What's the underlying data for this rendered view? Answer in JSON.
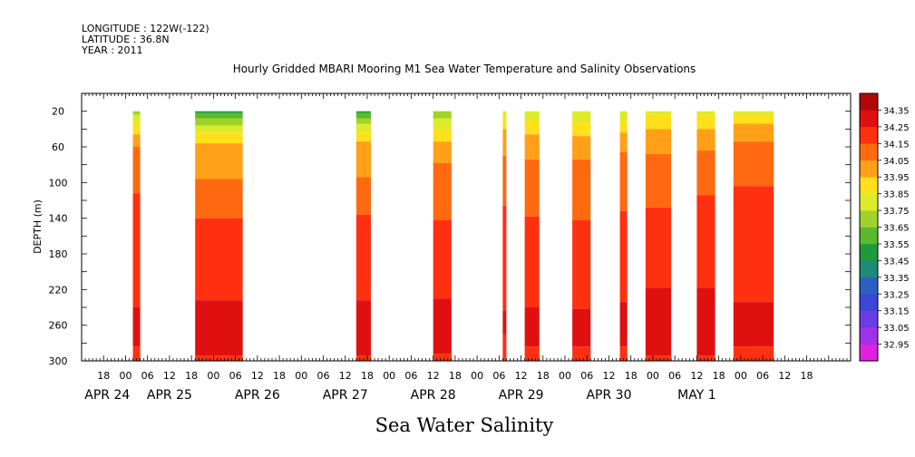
{
  "header": {
    "lines": [
      "LONGITUDE : 122W(-122)",
      "LATITUDE : 36.8N",
      "YEAR : 2011"
    ]
  },
  "chart_data": {
    "type": "heatmap",
    "title": "Hourly Gridded MBARI Mooring M1 Sea Water Temperature and Salinity Observations",
    "caption": "Sea Water Salinity",
    "ylabel": "DEPTH (m)",
    "ylim": [
      0,
      300
    ],
    "y_inverted": true,
    "y_ticks": [
      20,
      60,
      100,
      140,
      180,
      220,
      260,
      300
    ],
    "x_hour_range": [
      -12,
      198
    ],
    "x_hour_ticks": [
      {
        "h": -6,
        "label": "18"
      },
      {
        "h": 0,
        "label": "00"
      },
      {
        "h": 6,
        "label": "06"
      },
      {
        "h": 12,
        "label": "12"
      },
      {
        "h": 18,
        "label": "18"
      },
      {
        "h": 24,
        "label": "00"
      },
      {
        "h": 30,
        "label": "06"
      },
      {
        "h": 36,
        "label": "12"
      },
      {
        "h": 42,
        "label": "18"
      },
      {
        "h": 48,
        "label": "00"
      },
      {
        "h": 54,
        "label": "06"
      },
      {
        "h": 60,
        "label": "12"
      },
      {
        "h": 66,
        "label": "18"
      },
      {
        "h": 72,
        "label": "00"
      },
      {
        "h": 78,
        "label": "06"
      },
      {
        "h": 84,
        "label": "12"
      },
      {
        "h": 90,
        "label": "18"
      },
      {
        "h": 96,
        "label": "00"
      },
      {
        "h": 102,
        "label": "06"
      },
      {
        "h": 108,
        "label": "12"
      },
      {
        "h": 114,
        "label": "18"
      },
      {
        "h": 120,
        "label": "00"
      },
      {
        "h": 126,
        "label": "06"
      },
      {
        "h": 132,
        "label": "12"
      },
      {
        "h": 138,
        "label": "18"
      },
      {
        "h": 144,
        "label": "00"
      },
      {
        "h": 150,
        "label": "06"
      },
      {
        "h": 156,
        "label": "12"
      },
      {
        "h": 162,
        "label": "18"
      },
      {
        "h": 168,
        "label": "00"
      },
      {
        "h": 174,
        "label": "06"
      },
      {
        "h": 180,
        "label": "12"
      },
      {
        "h": 186,
        "label": "18"
      }
    ],
    "x_day_labels": [
      {
        "h": -5,
        "label": "APR 24"
      },
      {
        "h": 12,
        "label": "APR 25"
      },
      {
        "h": 36,
        "label": "APR 26"
      },
      {
        "h": 60,
        "label": "APR 27"
      },
      {
        "h": 84,
        "label": "APR 28"
      },
      {
        "h": 108,
        "label": "APR 29"
      },
      {
        "h": 132,
        "label": "APR 30"
      },
      {
        "h": 156,
        "label": "MAY 1"
      }
    ],
    "colorbar": {
      "levels": [
        32.95,
        33.05,
        33.15,
        33.25,
        33.35,
        33.45,
        33.55,
        33.65,
        33.75,
        33.85,
        33.95,
        34.05,
        34.15,
        34.25,
        34.35
      ],
      "colors": [
        "#e020e0",
        "#a030e8",
        "#6a3ce8",
        "#3c46d8",
        "#2a60c0",
        "#1e8a7a",
        "#1f9a3a",
        "#5cb82c",
        "#a0d22a",
        "#dcec2a",
        "#ffe01a",
        "#ffa018",
        "#ff6a10",
        "#ff3010",
        "#e01010",
        "#b00808"
      ]
    },
    "segments": [
      {
        "start": 2,
        "end": 4,
        "profile": [
          [
            20,
            33.72
          ],
          [
            40,
            33.9
          ],
          [
            60,
            34.05
          ],
          [
            100,
            34.13
          ],
          [
            140,
            34.2
          ],
          [
            220,
            34.22
          ],
          [
            260,
            34.28
          ],
          [
            300,
            34.23
          ]
        ]
      },
      {
        "start": 19,
        "end": 32,
        "profile": [
          [
            20,
            33.5
          ],
          [
            30,
            33.68
          ],
          [
            45,
            33.85
          ],
          [
            60,
            33.98
          ],
          [
            80,
            34.03
          ],
          [
            120,
            34.08
          ],
          [
            150,
            34.18
          ],
          [
            200,
            34.21
          ],
          [
            240,
            34.26
          ],
          [
            260,
            34.3
          ],
          [
            300,
            34.24
          ]
        ]
      },
      {
        "start": 63,
        "end": 67,
        "profile": [
          [
            20,
            33.5
          ],
          [
            30,
            33.7
          ],
          [
            45,
            33.87
          ],
          [
            60,
            34.0
          ],
          [
            100,
            34.06
          ],
          [
            140,
            34.16
          ],
          [
            200,
            34.21
          ],
          [
            240,
            34.26
          ],
          [
            260,
            34.3
          ],
          [
            300,
            34.24
          ]
        ]
      },
      {
        "start": 84,
        "end": 89,
        "profile": [
          [
            20,
            33.65
          ],
          [
            35,
            33.82
          ],
          [
            55,
            33.96
          ],
          [
            80,
            34.06
          ],
          [
            120,
            34.12
          ],
          [
            180,
            34.2
          ],
          [
            240,
            34.26
          ],
          [
            260,
            34.29
          ],
          [
            300,
            34.24
          ]
        ]
      },
      {
        "start": 103,
        "end": 104,
        "profile": [
          [
            20,
            33.8
          ],
          [
            40,
            33.95
          ],
          [
            80,
            34.08
          ],
          [
            160,
            34.2
          ],
          [
            260,
            34.26
          ],
          [
            300,
            34.22
          ]
        ]
      },
      {
        "start": 109,
        "end": 113,
        "profile": [
          [
            20,
            33.78
          ],
          [
            40,
            33.92
          ],
          [
            60,
            34.02
          ],
          [
            100,
            34.1
          ],
          [
            160,
            34.18
          ],
          [
            220,
            34.22
          ],
          [
            260,
            34.28
          ],
          [
            300,
            34.23
          ]
        ]
      },
      {
        "start": 122,
        "end": 127,
        "profile": [
          [
            20,
            33.76
          ],
          [
            40,
            33.9
          ],
          [
            60,
            34.02
          ],
          [
            100,
            34.1
          ],
          [
            160,
            34.17
          ],
          [
            220,
            34.21
          ],
          [
            260,
            34.28
          ],
          [
            300,
            34.23
          ]
        ]
      },
      {
        "start": 135,
        "end": 137,
        "profile": [
          [
            20,
            33.78
          ],
          [
            40,
            33.92
          ],
          [
            60,
            34.04
          ],
          [
            120,
            34.14
          ],
          [
            200,
            34.21
          ],
          [
            260,
            34.28
          ],
          [
            300,
            34.23
          ]
        ]
      },
      {
        "start": 142,
        "end": 149,
        "profile": [
          [
            20,
            33.82
          ],
          [
            40,
            33.95
          ],
          [
            70,
            34.06
          ],
          [
            120,
            34.14
          ],
          [
            180,
            34.22
          ],
          [
            230,
            34.26
          ],
          [
            260,
            34.3
          ],
          [
            300,
            34.24
          ]
        ]
      },
      {
        "start": 156,
        "end": 161,
        "profile": [
          [
            20,
            33.82
          ],
          [
            40,
            33.95
          ],
          [
            70,
            34.08
          ],
          [
            120,
            34.16
          ],
          [
            180,
            34.22
          ],
          [
            230,
            34.26
          ],
          [
            260,
            34.3
          ],
          [
            300,
            34.24
          ]
        ]
      },
      {
        "start": 166,
        "end": 177,
        "profile": [
          [
            20,
            33.82
          ],
          [
            35,
            33.95
          ],
          [
            55,
            34.06
          ],
          [
            90,
            34.13
          ],
          [
            150,
            34.21
          ],
          [
            220,
            34.23
          ],
          [
            250,
            34.27
          ],
          [
            300,
            34.24
          ]
        ]
      }
    ]
  }
}
